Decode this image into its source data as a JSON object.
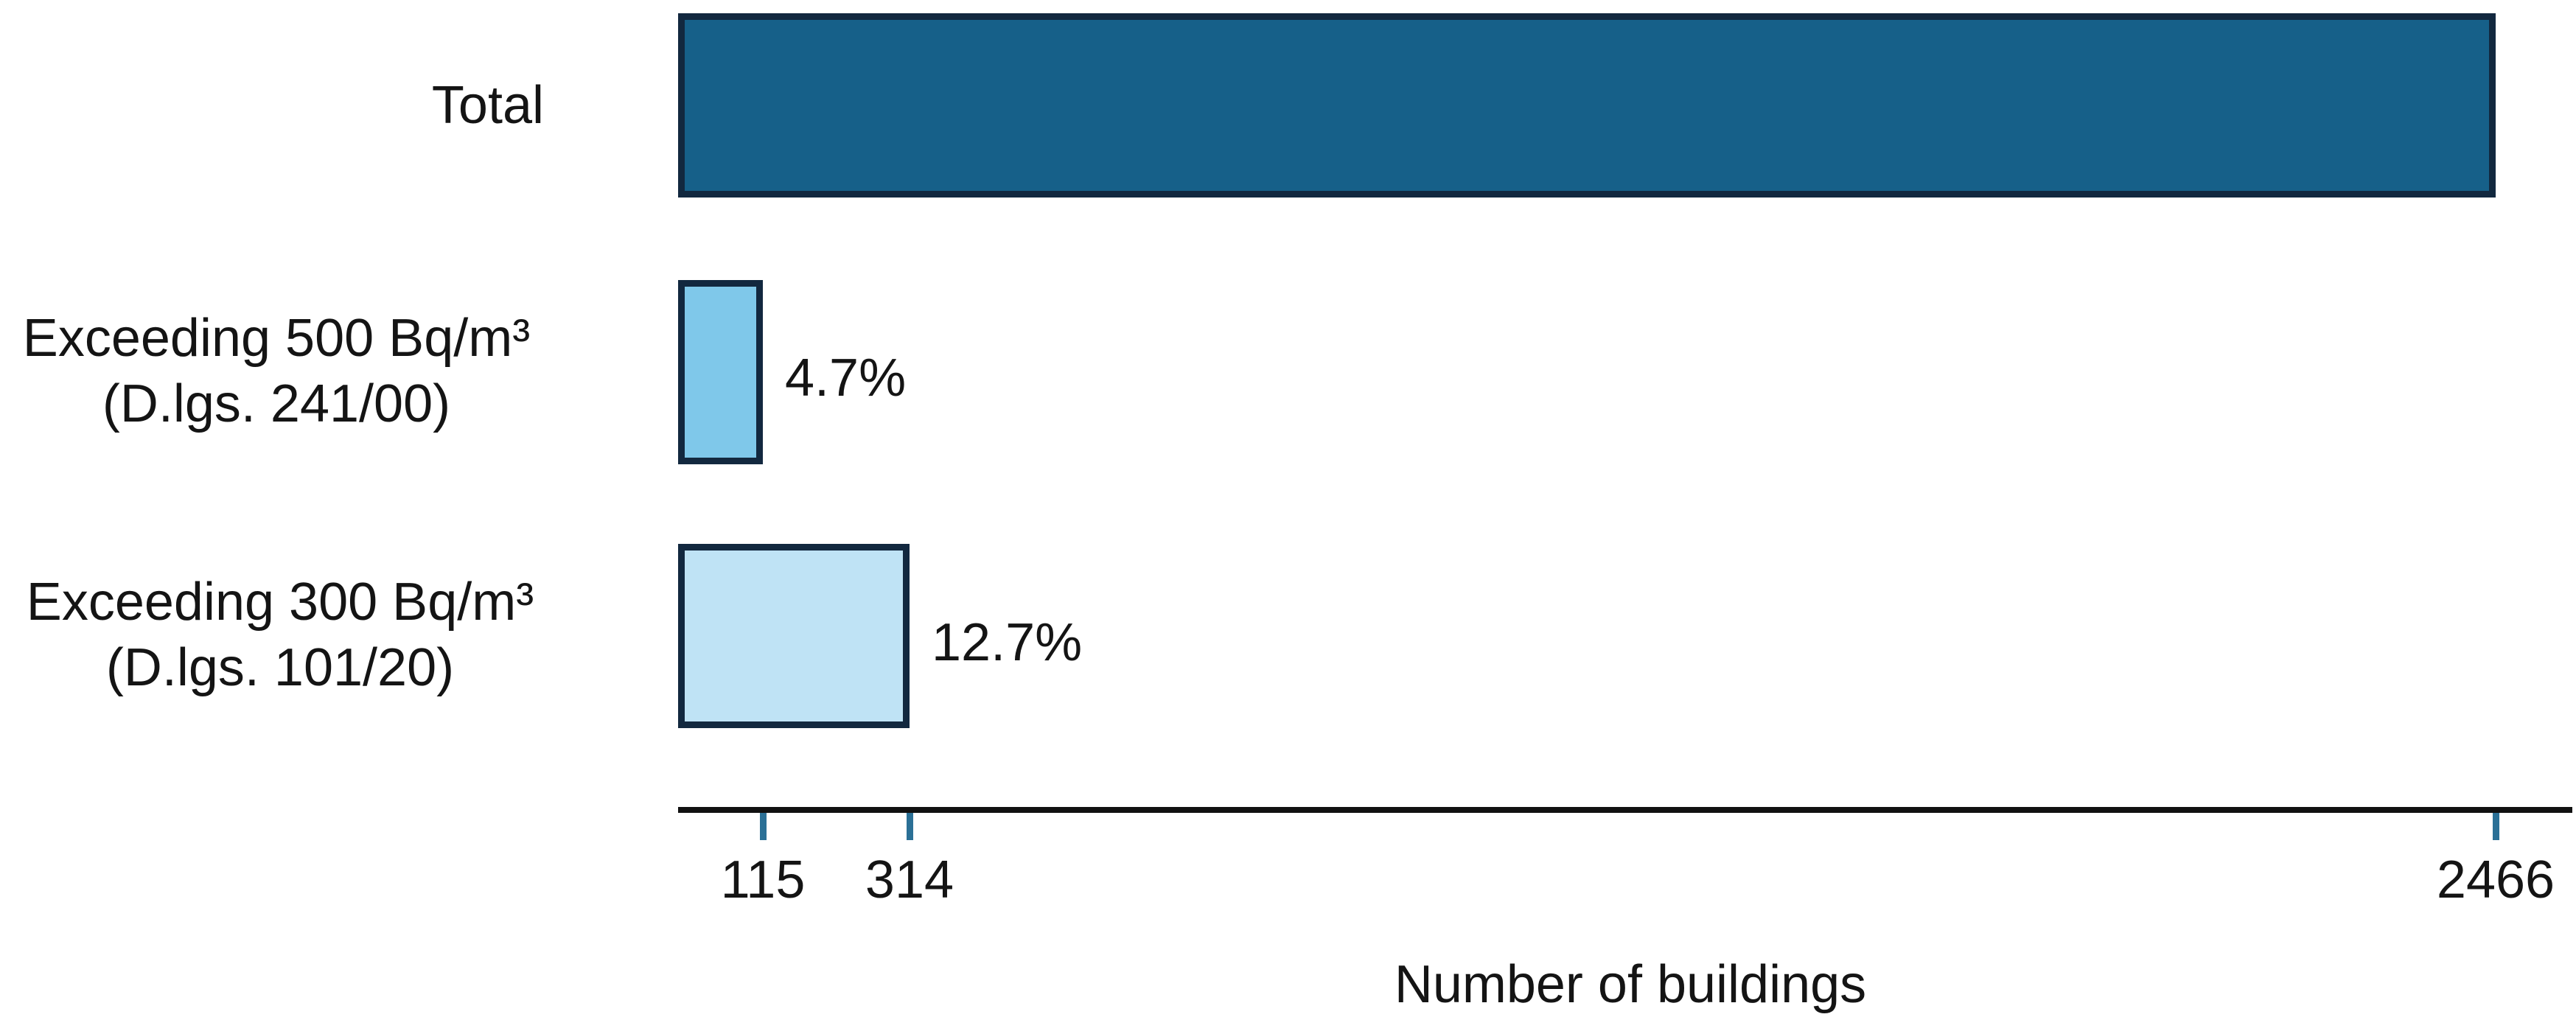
{
  "chart_data": {
    "type": "bar",
    "orientation": "horizontal",
    "title": "",
    "xlabel": "Number of buildings",
    "ylabel": "",
    "categories": [
      "Total",
      "Exceeding 500 Bq/m³ (D.lgs. 241/00)",
      "Exceeding 300 Bq/m³ (D.lgs. 101/20)"
    ],
    "values": [
      2466,
      115,
      314
    ],
    "bar_value_labels": [
      "",
      "4.7%",
      "12.7%"
    ],
    "rows": [
      {
        "label_line1": "Total",
        "label_line2": "",
        "value": 2466,
        "percent": ""
      },
      {
        "label_line1": "Exceeding 500 Bq/m³",
        "label_line2": "(D.lgs. 241/00)",
        "value": 115,
        "percent": "4.7%"
      },
      {
        "label_line1": "Exceeding 300 Bq/m³",
        "label_line2": "(D.lgs. 101/20)",
        "value": 314,
        "percent": "12.7%"
      }
    ],
    "x_axis": {
      "label": "Number of buildings",
      "tick_values": [
        115,
        314,
        2466
      ],
      "tick_labels": [
        "115",
        "314",
        "2466"
      ]
    },
    "xlim": [
      0,
      2570
    ],
    "grid": false,
    "legend": false,
    "bar_fills": [
      "#166089",
      "#7FC8EA",
      "#BFE3F5"
    ],
    "colors": {
      "bar_border": "#12283F",
      "axis_line": "#111111",
      "tick_mark": "#2B7096",
      "text": "#141414"
    }
  }
}
